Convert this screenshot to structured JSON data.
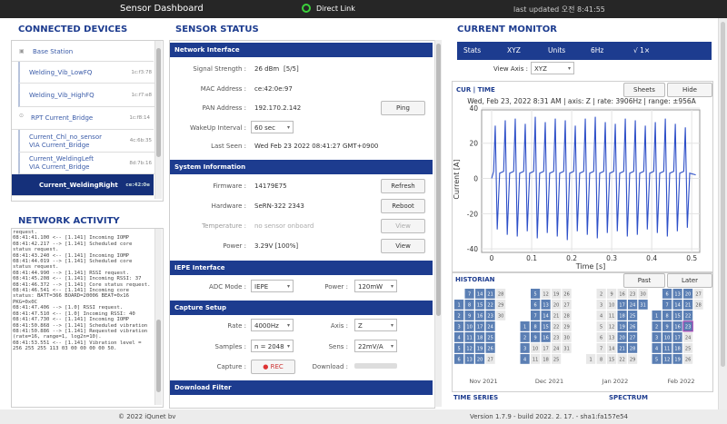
{
  "header": {
    "title": "Sensor Dashboard",
    "link": "Direct Link",
    "updated": "last updated 오전 8:41:55"
  },
  "devices": {
    "title": "CONNECTED DEVICES",
    "items": [
      {
        "name": "Base Station"
      },
      {
        "name": "Welding_Vib_LowFQ",
        "id": "1c:f3:78"
      },
      {
        "name": "Welding_Vib_HighFQ",
        "id": "1c:f7:e8"
      },
      {
        "name": "RPT Current_Bridge",
        "id": "1c:f8:14"
      },
      {
        "name": "Current_Chl_no_sensor",
        "via": "VIA Current_Bridge",
        "id": "4c:6b:35"
      },
      {
        "name": "Current_WeldingLeft",
        "via": "VIA Current_Bridge",
        "id": "8d:7b:16"
      },
      {
        "name": "Current_WeldingRight",
        "id": "ce:42:0e"
      }
    ]
  },
  "network": {
    "title": "NETWORK ACTIVITY",
    "log": [
      "request.",
      "08:41:41.100 <-- [1.141] Incoming IOMP",
      "08:41:42.217 --> [1.141] Scheduled core status request.",
      "08:41:43.240 <-- [1.141] Incoming IOMP",
      "08:41:44.019 --> [1.141] Scheduled core status request.",
      "08:41:44.990 --> [1.141] RSSI request.",
      "08:41:45.208 <-- [1.141] Incoming RSSI: 37",
      "08:41:46.372 --> [1.141] Core status request.",
      "08:41:46.541 <-- [1.141] Incoming core status: BATT=366 BOARD=20006 BEAT=0x16 PKG=0x0C",
      "08:41:47.406 --> [1.0] RSSI request.",
      "08:41:47.510 <-- [1.0] Incoming RSSI: 40",
      "08:41:47.730 <-- [1.141] Incoming IOMP",
      "08:41:50.868 --> [1.141] Scheduled vibration",
      "08:41:50.886 --> [1.141] Requested vibration (rate=16, range=1, log2n=10).",
      "08:41:53.551 <-- [1.141] Vibration level = 256 255 255 113 03 00 00 00 00 50."
    ]
  },
  "status": {
    "title": "SENSOR STATUS",
    "network": {
      "header": "Network Interface",
      "signal_label": "Signal Strength :",
      "signal": "26 dBm",
      "signal_bars": "[5/5]",
      "mac_label": "MAC Address :",
      "mac": "ce:42:0e:97",
      "pan_label": "PAN Address :",
      "pan": "192.170.2.142",
      "ping": "Ping",
      "wakeup_label": "WakeUp Interval :",
      "wakeup": "60 sec",
      "seen_label": "Last Seen :",
      "seen": "Wed Feb 23 2022 08:41:27 GMT+0900"
    },
    "system": {
      "header": "System Information",
      "firmware_label": "Firmware :",
      "firmware": "14179E75",
      "refresh": "Refresh",
      "hardware_label": "Hardware :",
      "hardware": "SeRN-322 2343",
      "reboot": "Reboot",
      "temp_label": "Temperature :",
      "temp": "no sensor onboard",
      "temp_view": "View",
      "power_label": "Power :",
      "power": "3.29V [100%]",
      "power_view": "View"
    },
    "iepe": {
      "header": "IEPE Interface",
      "adc_label": "ADC Mode :",
      "adc": "IEPE",
      "power_label": "Power :",
      "power": "120mW"
    },
    "capture": {
      "header": "Capture Setup",
      "rate_label": "Rate :",
      "rate": "4000Hz",
      "axis_label": "Axis :",
      "axis": "Z",
      "samples_label": "Samples :",
      "samples": "n = 2048",
      "sens_label": "Sens :",
      "sens": "22mV/A",
      "capture_label": "Capture :",
      "rec": "REC",
      "download_label": "Download :"
    },
    "filter": {
      "header": "Download Filter"
    }
  },
  "monitor": {
    "title": "CURRENT MONITOR",
    "toolbar": [
      "Stats",
      "XYZ",
      "Units",
      "6Hz",
      "√ 1×"
    ],
    "view_axis_label": "View Axis :",
    "view_axis": "XYZ",
    "panel_label": "CUR | TIME",
    "sheets": "Sheets",
    "hide": "Hide",
    "time_series": "TIME SERIES",
    "spectrum": "SPECTRUM"
  },
  "chart_data": {
    "type": "line",
    "title": "Wed, Feb 23, 2022 8:31 AM | axis: Z | rate: 3906Hz | range: ±956A",
    "xlabel": "Time [s]",
    "ylabel": "Current [A]",
    "color": "#2d4fc8",
    "grid": true,
    "xlim": [
      -0.025,
      0.52
    ],
    "xticks": [
      0,
      0.1,
      0.2,
      0.3,
      0.4,
      0.5
    ],
    "ylim": [
      -42,
      41
    ],
    "yticks": [
      -40,
      -20,
      0,
      20,
      40
    ],
    "x": [
      0,
      0.005,
      0.009,
      0.014,
      0.02,
      0.03,
      0.034,
      0.039,
      0.045,
      0.055,
      0.059,
      0.064,
      0.07,
      0.08,
      0.084,
      0.089,
      0.095,
      0.105,
      0.109,
      0.114,
      0.12,
      0.13,
      0.134,
      0.139,
      0.145,
      0.155,
      0.159,
      0.164,
      0.17,
      0.18,
      0.184,
      0.189,
      0.195,
      0.205,
      0.209,
      0.214,
      0.22,
      0.23,
      0.234,
      0.239,
      0.245,
      0.255,
      0.259,
      0.264,
      0.27,
      0.28,
      0.284,
      0.289,
      0.295,
      0.305,
      0.309,
      0.314,
      0.32,
      0.33,
      0.334,
      0.339,
      0.345,
      0.355,
      0.359,
      0.364,
      0.37,
      0.38,
      0.384,
      0.389,
      0.395,
      0.405,
      0.409,
      0.414,
      0.42,
      0.43,
      0.434,
      0.439,
      0.445,
      0.455,
      0.459,
      0.464,
      0.47,
      0.48,
      0.484,
      0.489,
      0.495,
      0.51
    ],
    "values": [
      0,
      4,
      30,
      -29,
      3,
      4,
      33,
      -32,
      3,
      4,
      34,
      -33,
      3,
      4,
      31,
      -30,
      3,
      4,
      35,
      -34,
      3,
      4,
      32,
      -31,
      3,
      4,
      34,
      -33,
      3,
      4,
      33,
      -35,
      3,
      4,
      30,
      -30,
      3,
      4,
      34,
      -32,
      3,
      4,
      35,
      -34,
      3,
      4,
      32,
      -31,
      3,
      4,
      31,
      -30,
      3,
      4,
      34,
      -33,
      3,
      4,
      33,
      -32,
      3,
      4,
      30,
      -29,
      3,
      4,
      32,
      -31,
      3,
      4,
      34,
      -33,
      3,
      4,
      31,
      -30,
      3,
      4,
      29,
      -28,
      3,
      2
    ]
  },
  "historian": {
    "title": "HISTORIAN",
    "past": "Past",
    "later": "Later",
    "months": [
      {
        "label": "Nov 2021",
        "days": [
          1,
          2,
          3,
          4,
          5,
          6,
          7,
          8,
          9,
          10,
          11,
          12,
          13,
          14,
          15,
          16,
          17,
          18,
          19,
          20,
          21,
          22,
          23,
          24,
          25,
          26,
          27,
          28,
          29,
          30
        ],
        "active_days": [
          1,
          2,
          3,
          4,
          5,
          6,
          7,
          8,
          9,
          10,
          11,
          12,
          13,
          14,
          15,
          16,
          17,
          18,
          19,
          20,
          21,
          22,
          23,
          24,
          25,
          26
        ]
      },
      {
        "label": "Dec 2021",
        "days": [
          1,
          2,
          3,
          4,
          5,
          6,
          7,
          8,
          9,
          10,
          11,
          12,
          13,
          14,
          15,
          16,
          17,
          18,
          19,
          20,
          21,
          22,
          23,
          24,
          25,
          26,
          27,
          28,
          29,
          30,
          31
        ],
        "active_days": [
          1,
          2,
          3,
          4,
          5,
          6,
          7,
          8,
          9,
          13,
          14,
          15,
          16
        ]
      },
      {
        "label": "Jan 2022",
        "days": [
          1,
          2,
          3,
          4,
          5,
          6,
          7,
          8,
          9,
          10,
          11,
          12,
          13,
          14,
          15,
          16,
          17,
          18,
          19,
          20,
          21,
          22,
          23,
          24,
          25,
          26,
          27,
          28,
          29,
          30,
          31
        ],
        "active_days": [
          17,
          18,
          19,
          20,
          21,
          24,
          25,
          26,
          27,
          28,
          31
        ]
      },
      {
        "label": "Feb 2022",
        "days": [
          1,
          2,
          3,
          4,
          5,
          6,
          7,
          8,
          9,
          10,
          11,
          12,
          13,
          14,
          15,
          16,
          17,
          18,
          19,
          20,
          21,
          22,
          23,
          24,
          25,
          26,
          27,
          28
        ],
        "active_days": [
          1,
          2,
          3,
          4,
          5,
          6,
          7,
          8,
          9,
          10,
          11,
          12,
          13,
          14,
          15,
          16,
          17,
          18,
          19,
          20,
          21,
          22,
          23
        ],
        "selected": 23
      }
    ]
  },
  "footer": {
    "copyright": "© 2022 iQunet bv",
    "version": "Version 1.7.9 - build 2022. 2. 17. - sha1:fa157e54"
  }
}
